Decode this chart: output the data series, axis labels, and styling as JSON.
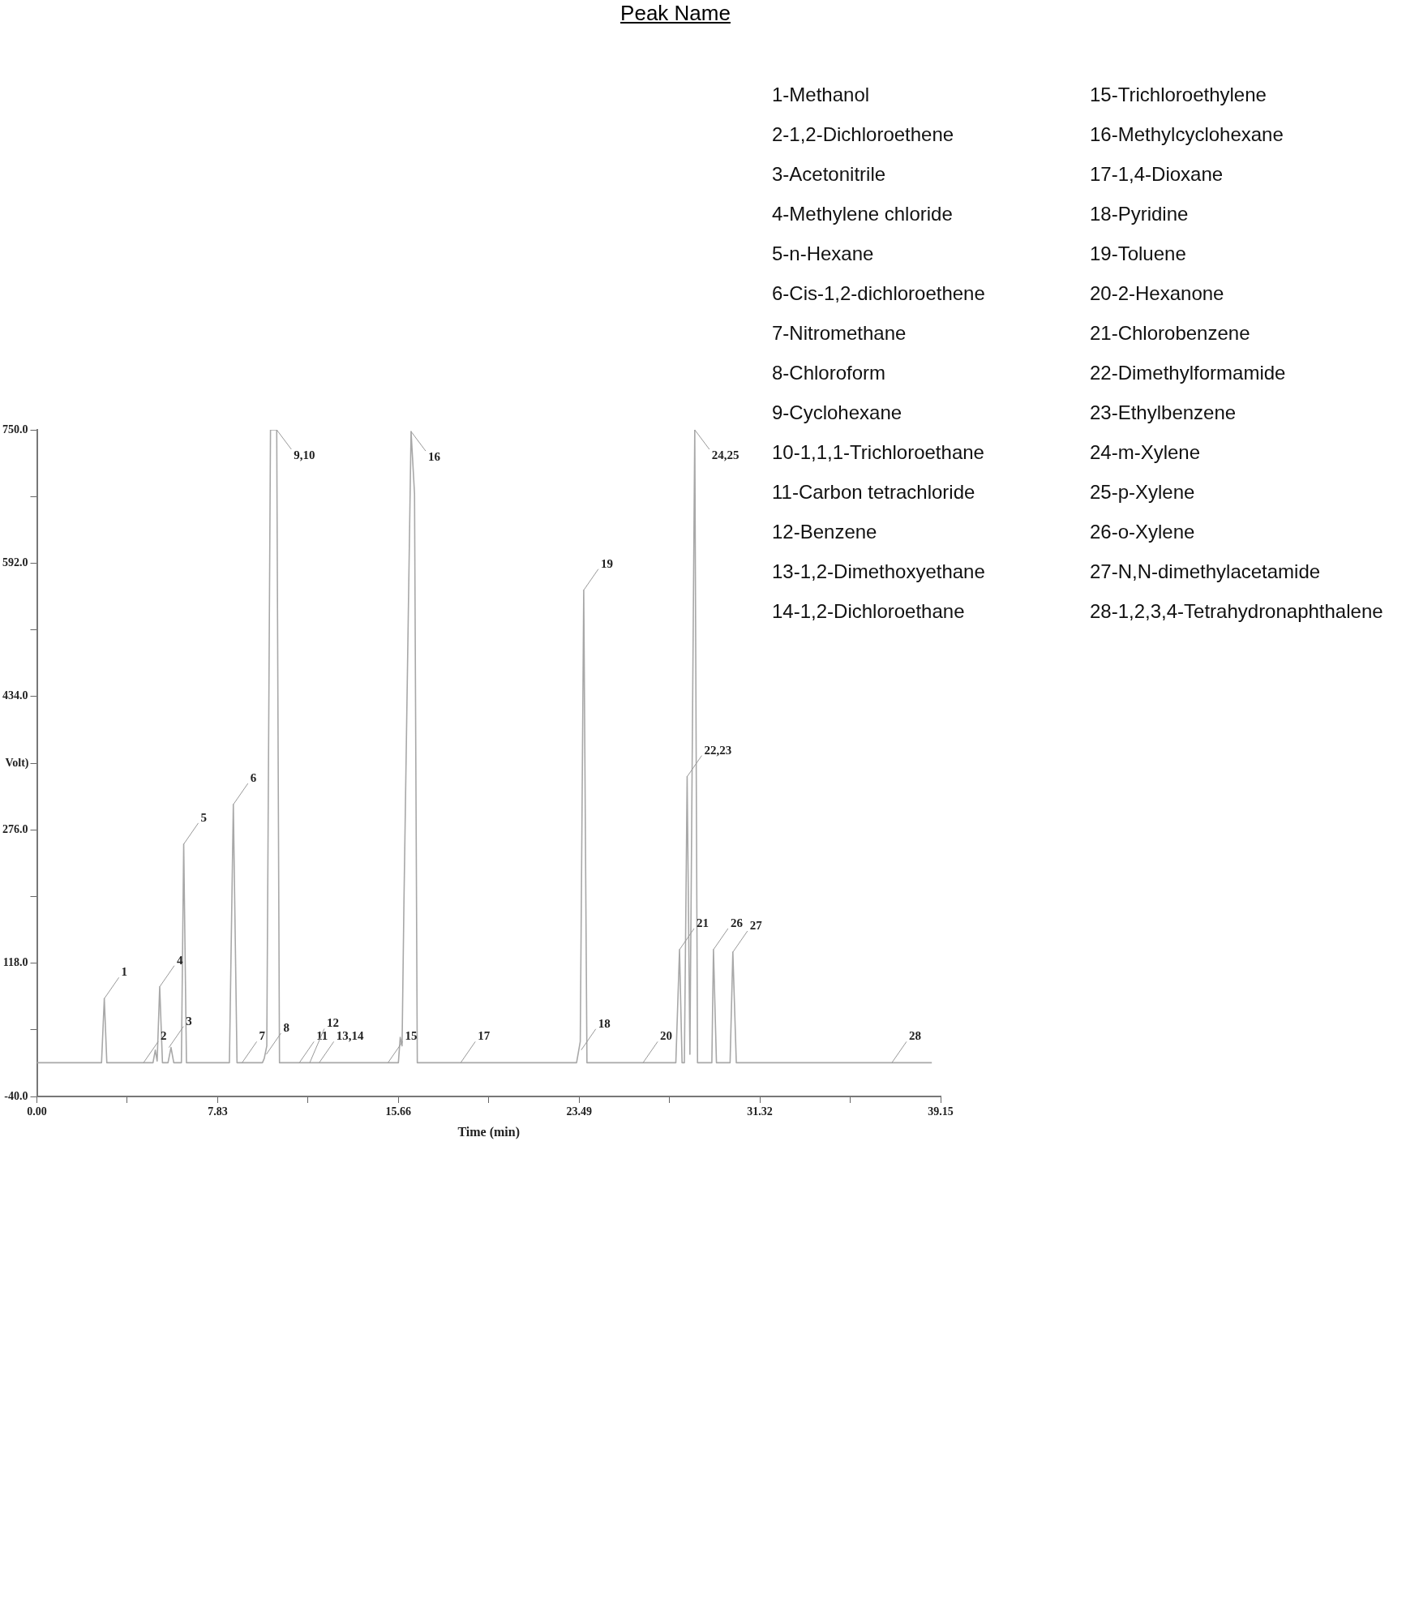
{
  "chart_data": {
    "type": "line",
    "title": "Peak Name",
    "xlabel": "Time (min)",
    "ylabel": "Volt)",
    "xlim": [
      0,
      39.15
    ],
    "ylim": [
      -40,
      750
    ],
    "xticks": [
      {
        "value": 0,
        "label": "0.00"
      },
      {
        "value": 3.915,
        "label": null
      },
      7.83,
      {
        "value": 11.745,
        "label": null
      },
      15.66,
      {
        "value": 19.575,
        "label": null
      },
      23.49,
      {
        "value": 27.405,
        "label": null
      },
      31.32,
      {
        "value": 35.235,
        "label": null
      },
      39.15
    ],
    "yticks": [
      {
        "value": -40,
        "label": "-40.0"
      },
      {
        "value": 39,
        "label": null
      },
      {
        "value": 118,
        "label": "118.0"
      },
      {
        "value": 197,
        "label": null
      },
      {
        "value": 276,
        "label": "276.0"
      },
      {
        "value": 355,
        "label": null
      },
      {
        "value": 434,
        "label": "434.0"
      },
      {
        "value": 513,
        "label": null
      },
      {
        "value": 592,
        "label": "592.0"
      },
      {
        "value": 671,
        "label": null
      },
      {
        "value": 750,
        "label": "750.0"
      }
    ],
    "grid": false,
    "legend": false,
    "marker": "none",
    "line_style": "solid",
    "series": [
      {
        "color": "#a8a8a8",
        "x": [
          0,
          2.8,
          2.92,
          3.03,
          5.03,
          5.13,
          5.21,
          5.32,
          5.44,
          5.68,
          5.81,
          5.93,
          6.26,
          6.36,
          6.48,
          8.34,
          8.51,
          8.67,
          9.77,
          9.85,
          9.96,
          10.12,
          10.39,
          10.51,
          15.66,
          15.74,
          15.82,
          15.9,
          16.21,
          16.36,
          16.48,
          23.38,
          23.54,
          23.69,
          23.83,
          27.68,
          27.84,
          27.95,
          28.05,
          28.17,
          28.29,
          28.5,
          28.62,
          29.24,
          29.31,
          29.44,
          30.03,
          30.15,
          30.3,
          38.77
        ],
        "values": [
          0,
          0,
          76,
          0,
          0,
          15,
          2,
          90,
          0,
          0,
          18,
          0,
          0,
          259,
          0,
          0,
          306,
          0,
          0,
          5,
          20,
          750,
          750,
          0,
          0,
          30,
          20,
          187,
          748,
          674,
          0,
          0,
          25,
          560,
          0,
          0,
          134,
          0,
          0,
          339,
          10,
          750,
          0,
          0,
          134,
          0,
          0,
          131,
          0,
          0
        ]
      }
    ],
    "annotations": [
      {
        "text": "1",
        "x": 2.92,
        "y": 76
      },
      {
        "text": "2",
        "x": 4.62,
        "y": 0
      },
      {
        "text": "3",
        "x": 5.72,
        "y": 18
      },
      {
        "text": "4",
        "x": 5.32,
        "y": 90
      },
      {
        "text": "5",
        "x": 6.36,
        "y": 259
      },
      {
        "text": "6",
        "x": 8.51,
        "y": 306
      },
      {
        "text": "7",
        "x": 8.89,
        "y": 0
      },
      {
        "text": "8",
        "x": 9.94,
        "y": 10
      },
      {
        "text": "9,10",
        "x": 10.39,
        "y": 750
      },
      {
        "text": "11",
        "x": 11.37,
        "y": 0
      },
      {
        "text": "12",
        "x": 11.82,
        "y": 0
      },
      {
        "text": "13,14",
        "x": 12.23,
        "y": 0
      },
      {
        "text": "15",
        "x": 15.21,
        "y": 0
      },
      {
        "text": "16",
        "x": 16.21,
        "y": 748
      },
      {
        "text": "17",
        "x": 18.36,
        "y": 0
      },
      {
        "text": "18",
        "x": 23.58,
        "y": 15
      },
      {
        "text": "19",
        "x": 23.69,
        "y": 560
      },
      {
        "text": "20",
        "x": 26.26,
        "y": 0
      },
      {
        "text": "21",
        "x": 27.84,
        "y": 134
      },
      {
        "text": "22,23",
        "x": 28.17,
        "y": 339
      },
      {
        "text": "24,25",
        "x": 28.5,
        "y": 750
      },
      {
        "text": "26",
        "x": 29.31,
        "y": 134
      },
      {
        "text": "27",
        "x": 30.15,
        "y": 131
      },
      {
        "text": "28",
        "x": 37.04,
        "y": 0
      },
      "1-Methanol",
      "2-1,2-Dichloroethene",
      "3-Acetonitrile",
      "4-Methylene chloride",
      "5-n-Hexane",
      "6-Cis-1,2-dichloroethene",
      "7-Nitromethane",
      "8-Chloroform",
      "9-Cyclohexane",
      "10-1,1,1-Trichloroethane",
      "11-Carbon tetrachloride",
      "12-Benzene",
      "13-1,2-Dimethoxyethane",
      "14-1,2-Dichloroethane",
      "15-Trichloroethylene",
      "16-Methylcyclohexane",
      "17-1,4-Dioxane",
      "18-Pyridine",
      "19-Toluene",
      "20-2-Hexanone",
      "21-Chlorobenzene",
      "22-Dimethylformamide",
      "23-Ethylbenzene",
      "24-m-Xylene",
      "25-p-Xylene",
      "26-o-Xylene",
      "27-N,N-dimethylacetamide",
      "28-1,2,3,4-Tetrahydronaphthalene"
    ]
  }
}
